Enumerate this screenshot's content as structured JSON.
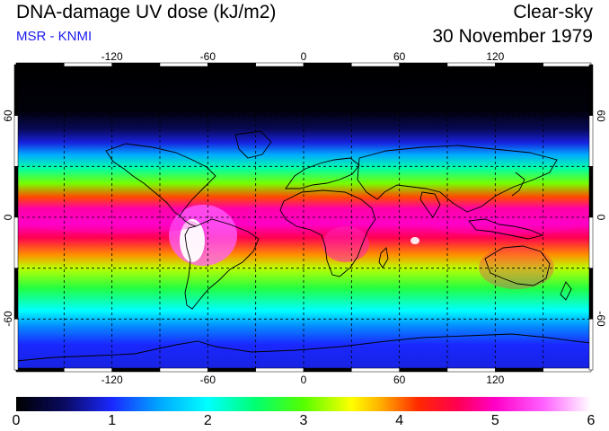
{
  "title": "DNA-damage UV dose (kJ/m2)",
  "source": "MSR - KNMI",
  "condition": "Clear-sky",
  "date": "30 November 1979",
  "colors": {
    "source_text": "#1a1aee",
    "gridline": "#000000",
    "coastline": "#000000"
  },
  "map": {
    "lon_ticks": [
      "-120",
      "-60",
      "0",
      "60",
      "120"
    ],
    "lat_ticks": [
      "60",
      "0",
      "-60"
    ],
    "lon_range": [
      -180,
      180
    ],
    "lat_range": [
      -90,
      90
    ]
  },
  "colorbar": {
    "min": 0,
    "max": 6,
    "labels": [
      "0",
      "1",
      "2",
      "3",
      "4",
      "5",
      "6"
    ],
    "stops": [
      {
        "v": 0.0,
        "c": "#000000"
      },
      {
        "v": 0.5,
        "c": "#0a0a60"
      },
      {
        "v": 1.0,
        "c": "#1a28ff"
      },
      {
        "v": 1.5,
        "c": "#00a8ff"
      },
      {
        "v": 2.0,
        "c": "#00ffff"
      },
      {
        "v": 2.5,
        "c": "#00ff70"
      },
      {
        "v": 3.0,
        "c": "#55ff00"
      },
      {
        "v": 3.5,
        "c": "#ffff00"
      },
      {
        "v": 3.8,
        "c": "#ffb000"
      },
      {
        "v": 4.2,
        "c": "#ff2800"
      },
      {
        "v": 4.6,
        "c": "#ff0050"
      },
      {
        "v": 5.0,
        "c": "#ff00c8"
      },
      {
        "v": 5.5,
        "c": "#ff60ff"
      },
      {
        "v": 6.0,
        "c": "#ffffff"
      }
    ]
  },
  "zonal_profile": [
    {
      "lat": 90,
      "v": 0.0
    },
    {
      "lat": 63,
      "v": 0.05
    },
    {
      "lat": 52,
      "v": 0.45
    },
    {
      "lat": 44,
      "v": 0.9
    },
    {
      "lat": 37,
      "v": 1.5
    },
    {
      "lat": 29,
      "v": 2.3
    },
    {
      "lat": 20,
      "v": 3.1
    },
    {
      "lat": 12,
      "v": 4.1
    },
    {
      "lat": 5,
      "v": 4.9
    },
    {
      "lat": -4,
      "v": 5.0
    },
    {
      "lat": -12,
      "v": 4.6
    },
    {
      "lat": -22,
      "v": 3.9
    },
    {
      "lat": -30,
      "v": 3.3
    },
    {
      "lat": -42,
      "v": 2.7
    },
    {
      "lat": -55,
      "v": 2.0
    },
    {
      "lat": -64,
      "v": 1.4
    },
    {
      "lat": -75,
      "v": 1.0
    },
    {
      "lat": -90,
      "v": 0.9
    }
  ]
}
